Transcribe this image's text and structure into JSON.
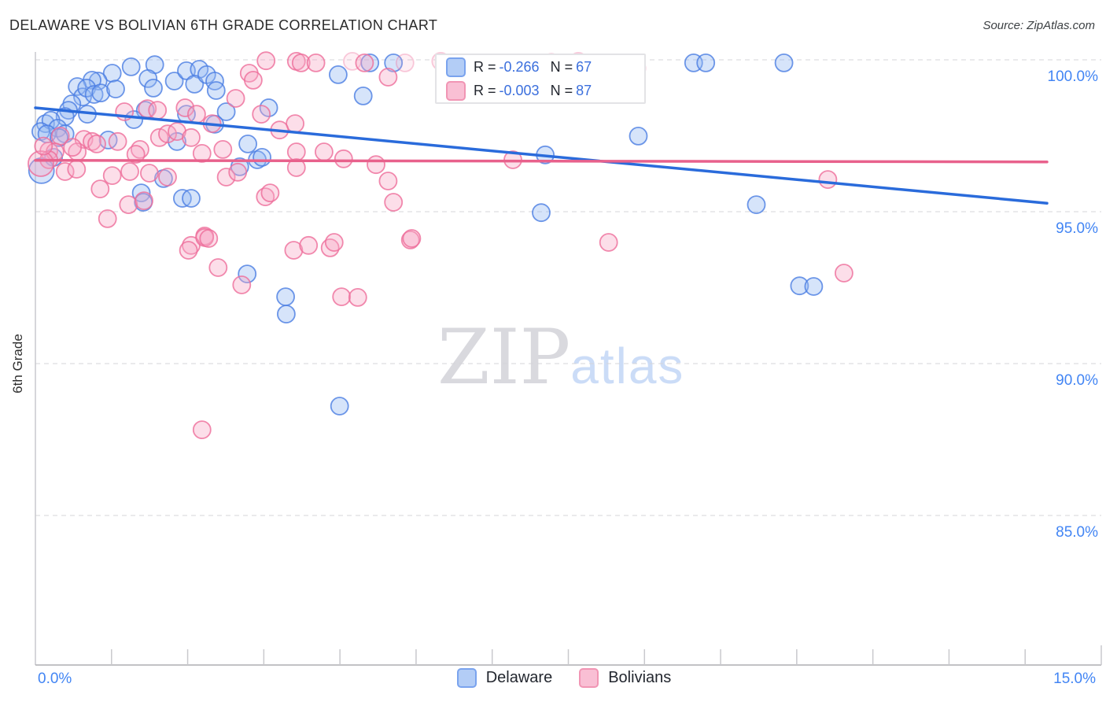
{
  "header": {
    "title": "DELAWARE VS BOLIVIAN 6TH GRADE CORRELATION CHART",
    "source": "Source: ZipAtlas.com"
  },
  "legend_box": {
    "rows": [
      {
        "series": "Delaware",
        "r_label": "R =",
        "r_value": "-0.266",
        "n_label": "N =",
        "n_value": "67"
      },
      {
        "series": "Bolivians",
        "r_label": "R =",
        "r_value": "-0.003",
        "n_label": "N =",
        "n_value": "87"
      }
    ]
  },
  "watermark": {
    "zip": "ZIP",
    "atlas": "atlas"
  },
  "axes": {
    "y_label": "6th Grade",
    "y_ticks": [
      {
        "label": "100.0%",
        "value": 100
      },
      {
        "label": "95.0%",
        "value": 95
      },
      {
        "label": "90.0%",
        "value": 90
      },
      {
        "label": "85.0%",
        "value": 85
      }
    ],
    "x_left_label": "0.0%",
    "x_right_label": "15.0%",
    "tick_label_color": "#4285f4"
  },
  "bottom_legend": {
    "items": [
      {
        "label": "Delaware"
      },
      {
        "label": "Bolivians"
      }
    ]
  },
  "chart_data": {
    "type": "scatter",
    "title": "DELAWARE VS BOLIVIAN 6TH GRADE CORRELATION CHART",
    "xlabel": "",
    "ylabel": "6th Grade",
    "x_range": [
      0,
      15
    ],
    "y_range_visible": [
      80.1,
      100.3
    ],
    "y_gridlines": [
      100,
      95,
      90,
      85
    ],
    "grid": "dashed-horizontal",
    "legend_position": "bottom-center",
    "series": [
      {
        "name": "Delaware",
        "R": -0.266,
        "N": 67,
        "stroke": "#4a7de2",
        "fill": "#93b8f3",
        "points": [
          [
            1.42,
            99.77
          ],
          [
            1.77,
            99.84
          ],
          [
            1.14,
            99.56
          ],
          [
            1.67,
            99.38
          ],
          [
            0.93,
            99.3
          ],
          [
            1.75,
            99.07
          ],
          [
            2.06,
            99.3
          ],
          [
            2.24,
            99.64
          ],
          [
            2.43,
            99.69
          ],
          [
            2.36,
            99.2
          ],
          [
            2.54,
            99.51
          ],
          [
            2.66,
            99.3
          ],
          [
            2.68,
            98.99
          ],
          [
            0.84,
            99.33
          ],
          [
            0.62,
            99.12
          ],
          [
            0.7,
            98.78
          ],
          [
            0.54,
            98.55
          ],
          [
            0.49,
            98.34
          ],
          [
            0.76,
            99.07
          ],
          [
            0.87,
            98.86
          ],
          [
            0.97,
            98.91
          ],
          [
            1.19,
            99.04
          ],
          [
            0.77,
            98.21
          ],
          [
            0.44,
            98.13
          ],
          [
            0.15,
            97.9
          ],
          [
            0.23,
            98.01
          ],
          [
            0.33,
            97.75
          ],
          [
            0.08,
            97.64
          ],
          [
            0.17,
            97.56
          ],
          [
            0.44,
            97.56
          ],
          [
            0.35,
            97.44
          ],
          [
            1.63,
            98.34
          ],
          [
            1.46,
            98.03
          ],
          [
            2.24,
            98.21
          ],
          [
            2.83,
            98.29
          ],
          [
            2.66,
            97.88
          ],
          [
            2.1,
            97.31
          ],
          [
            1.08,
            97.36
          ],
          [
            0.27,
            96.79
          ],
          [
            0.09,
            96.35,
            "L"
          ],
          [
            3.15,
            97.23
          ],
          [
            3.46,
            98.42
          ],
          [
            3.29,
            96.71
          ],
          [
            3.36,
            96.79
          ],
          [
            3.03,
            96.48
          ],
          [
            1.9,
            96.09
          ],
          [
            1.57,
            95.62
          ],
          [
            1.6,
            95.31
          ],
          [
            2.18,
            95.44
          ],
          [
            2.31,
            95.44
          ],
          [
            4.96,
            99.9
          ],
          [
            5.31,
            99.9
          ],
          [
            4.49,
            99.51
          ],
          [
            4.86,
            98.81
          ],
          [
            7.56,
            96.87
          ],
          [
            7.5,
            94.97
          ],
          [
            9.76,
            99.9
          ],
          [
            9.94,
            99.9
          ],
          [
            11.1,
            99.9
          ],
          [
            8.94,
            97.49
          ],
          [
            10.69,
            95.23
          ],
          [
            3.14,
            92.95
          ],
          [
            3.71,
            92.2
          ],
          [
            3.72,
            91.63
          ],
          [
            4.51,
            88.6
          ],
          [
            11.33,
            92.56
          ],
          [
            11.54,
            92.54
          ]
        ]
      },
      {
        "name": "Bolivians",
        "R": -0.003,
        "N": 87,
        "stroke": "#ee6d9a",
        "fill": "#f7a8c4",
        "points": [
          [
            3.42,
            99.97
          ],
          [
            3.17,
            99.56
          ],
          [
            3.23,
            99.33
          ],
          [
            3.87,
            99.95
          ],
          [
            2.97,
            98.73
          ],
          [
            1.66,
            98.39
          ],
          [
            1.81,
            98.34
          ],
          [
            1.32,
            98.29
          ],
          [
            2.22,
            98.42
          ],
          [
            2.39,
            98.21
          ],
          [
            2.62,
            97.9
          ],
          [
            3.35,
            98.21
          ],
          [
            3.85,
            97.9
          ],
          [
            3.62,
            97.69
          ],
          [
            0.37,
            97.49
          ],
          [
            0.72,
            97.38
          ],
          [
            0.84,
            97.31
          ],
          [
            0.91,
            97.23
          ],
          [
            1.22,
            97.31
          ],
          [
            1.84,
            97.44
          ],
          [
            1.96,
            97.56
          ],
          [
            2.1,
            97.64
          ],
          [
            2.31,
            97.44
          ],
          [
            0.2,
            97.0
          ],
          [
            0.29,
            96.97
          ],
          [
            0.62,
            96.97
          ],
          [
            1.55,
            97.05
          ],
          [
            2.78,
            97.05
          ],
          [
            0.2,
            96.71
          ],
          [
            0.08,
            96.58,
            "L"
          ],
          [
            0.44,
            96.32
          ],
          [
            0.61,
            96.4
          ],
          [
            2.83,
            96.14
          ],
          [
            1.14,
            96.19
          ],
          [
            1.4,
            96.32
          ],
          [
            1.69,
            96.27
          ],
          [
            1.96,
            96.14
          ],
          [
            0.96,
            95.75
          ],
          [
            1.38,
            95.23
          ],
          [
            1.61,
            95.36
          ],
          [
            3.41,
            95.49
          ],
          [
            3.48,
            95.62
          ],
          [
            1.07,
            94.77
          ],
          [
            2.51,
            94.2
          ],
          [
            2.31,
            93.89
          ],
          [
            3.87,
            96.97
          ],
          [
            3.87,
            96.45
          ],
          [
            3.94,
            99.9
          ],
          [
            4.16,
            99.9
          ],
          [
            4.7,
            99.95,
            "F"
          ],
          [
            4.88,
            99.9
          ],
          [
            5.48,
            99.9,
            "F"
          ],
          [
            6.01,
            99.95,
            "F"
          ],
          [
            5.23,
            99.43
          ],
          [
            7.29,
            99.38,
            "F"
          ],
          [
            4.28,
            96.97
          ],
          [
            4.57,
            96.74
          ],
          [
            7.08,
            96.71
          ],
          [
            5.23,
            96.01
          ],
          [
            5.31,
            95.31
          ],
          [
            5.56,
            94.07
          ],
          [
            3.83,
            93.73
          ],
          [
            4.05,
            93.89
          ],
          [
            4.37,
            93.81
          ],
          [
            4.43,
            93.99
          ],
          [
            8.05,
            99.95,
            "F"
          ],
          [
            8.92,
            99.72,
            "F"
          ],
          [
            11.75,
            96.06
          ],
          [
            8.5,
            93.99
          ],
          [
            2.27,
            93.73
          ],
          [
            2.51,
            94.15
          ],
          [
            2.57,
            94.12
          ],
          [
            2.71,
            93.16
          ],
          [
            3.06,
            92.59
          ],
          [
            5.58,
            94.12
          ],
          [
            4.54,
            92.2
          ],
          [
            4.78,
            92.18
          ],
          [
            2.47,
            87.82
          ],
          [
            11.99,
            92.98
          ],
          [
            0.12,
            97.16
          ],
          [
            0.55,
            97.12
          ],
          [
            1.49,
            96.89
          ],
          [
            2.47,
            96.92
          ],
          [
            3.0,
            96.3
          ],
          [
            5.05,
            96.55
          ],
          [
            6.65,
            99.9,
            "F"
          ],
          [
            7.65,
            99.92,
            "F"
          ]
        ]
      }
    ],
    "trend_lines": [
      {
        "series": "Delaware",
        "color": "#2a6bdb",
        "x": [
          0,
          15
        ],
        "y": [
          98.42,
          95.28
        ]
      },
      {
        "series": "Bolivians",
        "color": "#e8618c",
        "x": [
          0,
          15
        ],
        "y": [
          96.69,
          96.64
        ]
      }
    ]
  }
}
